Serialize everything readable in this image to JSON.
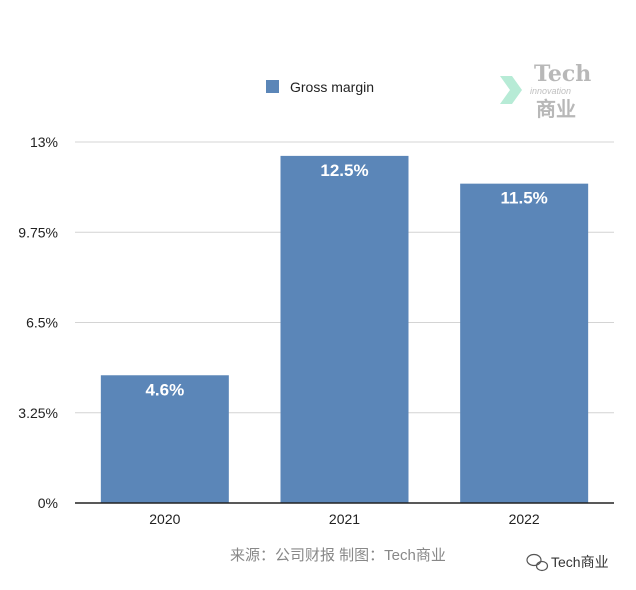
{
  "chart_data": {
    "type": "bar",
    "categories": [
      "2020",
      "2021",
      "2022"
    ],
    "series": [
      {
        "name": "Gross margin",
        "values": [
          4.6,
          12.5,
          11.5
        ]
      }
    ],
    "data_labels": [
      "4.6%",
      "12.5%",
      "11.5%"
    ],
    "y_ticks": [
      0,
      3.25,
      6.5,
      9.75,
      13
    ],
    "y_tick_labels": [
      "0%",
      "3.25%",
      "6.5%",
      "9.75%",
      "13%"
    ],
    "ylim": [
      0,
      13
    ],
    "grid": true,
    "legend_position": "top-center",
    "bar_color": "#5b86b8"
  },
  "source_note": "来源：公司财报 制图：Tech商业",
  "logo": {
    "tech": "Tech",
    "sub": "innovation",
    "cn": "商业"
  },
  "watermark": "Tech商业"
}
